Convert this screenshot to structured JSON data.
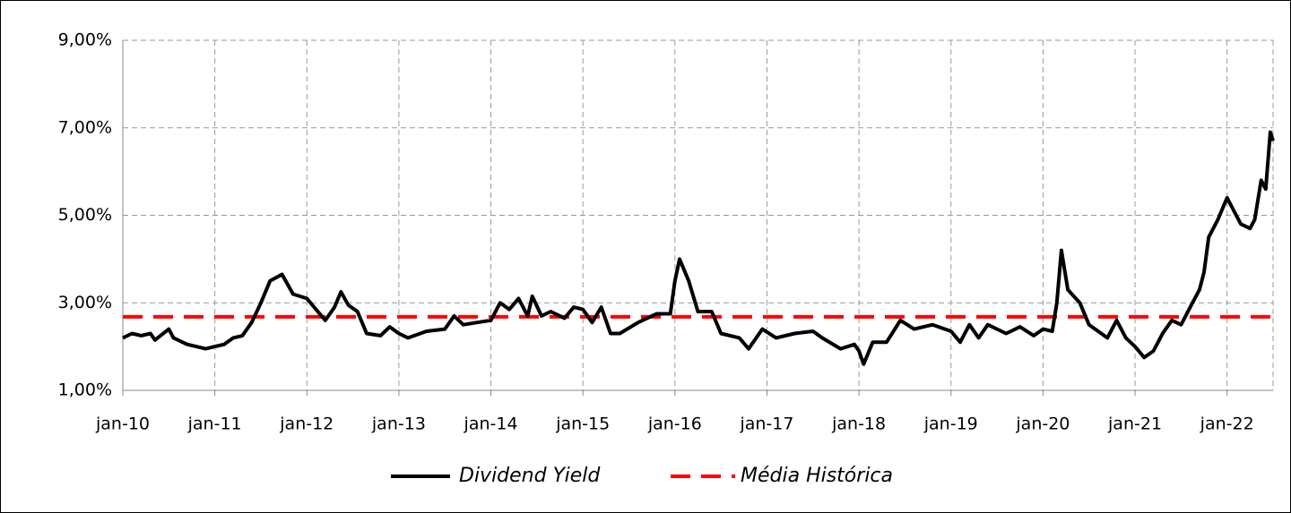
{
  "chart_data": {
    "type": "line",
    "x": [
      2010.0,
      2010.1,
      2010.2,
      2010.3,
      2010.35,
      2010.5,
      2010.55,
      2010.7,
      2010.8,
      2010.9,
      2011.0,
      2011.1,
      2011.2,
      2011.3,
      2011.4,
      2011.5,
      2011.6,
      2011.73,
      2011.85,
      2012.0,
      2012.1,
      2012.2,
      2012.3,
      2012.37,
      2012.45,
      2012.55,
      2012.65,
      2012.8,
      2012.9,
      2013.0,
      2013.1,
      2013.3,
      2013.5,
      2013.6,
      2013.7,
      2013.85,
      2014.0,
      2014.1,
      2014.2,
      2014.3,
      2014.4,
      2014.45,
      2014.55,
      2014.65,
      2014.8,
      2014.9,
      2015.0,
      2015.1,
      2015.2,
      2015.3,
      2015.4,
      2015.6,
      2015.8,
      2015.95,
      2016.0,
      2016.05,
      2016.15,
      2016.25,
      2016.4,
      2016.5,
      2016.7,
      2016.8,
      2016.95,
      2017.1,
      2017.3,
      2017.5,
      2017.6,
      2017.8,
      2017.95,
      2018.0,
      2018.05,
      2018.15,
      2018.3,
      2018.45,
      2018.6,
      2018.8,
      2019.0,
      2019.1,
      2019.2,
      2019.3,
      2019.4,
      2019.6,
      2019.75,
      2019.9,
      2020.0,
      2020.1,
      2020.15,
      2020.2,
      2020.27,
      2020.4,
      2020.5,
      2020.7,
      2020.8,
      2020.9,
      2021.0,
      2021.1,
      2021.2,
      2021.3,
      2021.4,
      2021.5,
      2021.6,
      2021.7,
      2021.75,
      2021.8,
      2021.9,
      2022.0,
      2022.1,
      2022.15,
      2022.25,
      2022.3,
      2022.37,
      2022.42,
      2022.47,
      2022.5
    ],
    "series": [
      {
        "name": "Dividend Yield",
        "color": "#000000",
        "values": [
          2.2,
          2.3,
          2.25,
          2.3,
          2.15,
          2.4,
          2.2,
          2.05,
          2.0,
          1.95,
          2.0,
          2.05,
          2.2,
          2.25,
          2.55,
          3.0,
          3.5,
          3.65,
          3.2,
          3.1,
          2.85,
          2.6,
          2.9,
          3.25,
          2.95,
          2.8,
          2.3,
          2.25,
          2.45,
          2.3,
          2.2,
          2.35,
          2.4,
          2.7,
          2.5,
          2.55,
          2.6,
          3.0,
          2.85,
          3.1,
          2.7,
          3.15,
          2.7,
          2.8,
          2.65,
          2.9,
          2.85,
          2.55,
          2.9,
          2.3,
          2.3,
          2.55,
          2.75,
          2.75,
          3.5,
          4.0,
          3.5,
          2.8,
          2.8,
          2.3,
          2.2,
          1.95,
          2.4,
          2.2,
          2.3,
          2.35,
          2.2,
          1.95,
          2.05,
          1.9,
          1.6,
          2.1,
          2.1,
          2.6,
          2.4,
          2.5,
          2.35,
          2.1,
          2.5,
          2.2,
          2.5,
          2.3,
          2.45,
          2.25,
          2.4,
          2.35,
          3.0,
          4.2,
          3.3,
          3.0,
          2.5,
          2.2,
          2.6,
          2.2,
          2.0,
          1.75,
          1.9,
          2.3,
          2.6,
          2.5,
          2.9,
          3.3,
          3.7,
          4.5,
          4.9,
          5.4,
          5.0,
          4.8,
          4.7,
          4.9,
          5.8,
          5.6,
          6.9,
          6.7
        ]
      }
    ],
    "reference_line": {
      "name": "Média Histórica",
      "color": "#ff0000",
      "value": 2.68
    },
    "xlim": [
      2010,
      2022.5
    ],
    "xticks": [
      {
        "value": 2010,
        "label": "jan-10"
      },
      {
        "value": 2011,
        "label": "jan-11"
      },
      {
        "value": 2012,
        "label": "jan-12"
      },
      {
        "value": 2013,
        "label": "jan-13"
      },
      {
        "value": 2014,
        "label": "jan-14"
      },
      {
        "value": 2015,
        "label": "jan-15"
      },
      {
        "value": 2016,
        "label": "jan-16"
      },
      {
        "value": 2017,
        "label": "jan-17"
      },
      {
        "value": 2018,
        "label": "jan-18"
      },
      {
        "value": 2019,
        "label": "jan-19"
      },
      {
        "value": 2020,
        "label": "jan-20"
      },
      {
        "value": 2021,
        "label": "jan-21"
      },
      {
        "value": 2022,
        "label": "jan-22"
      }
    ],
    "ylim": [
      1,
      9
    ],
    "yticks": [
      {
        "value": 1,
        "label": "1,00%"
      },
      {
        "value": 3,
        "label": "3,00%"
      },
      {
        "value": 5,
        "label": "5,00%"
      },
      {
        "value": 7,
        "label": "7,00%"
      },
      {
        "value": 9,
        "label": "9,00%"
      }
    ],
    "grid": true,
    "legend": "bottom"
  }
}
